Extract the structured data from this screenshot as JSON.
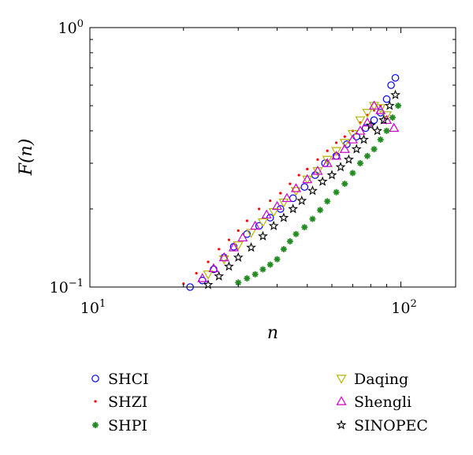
{
  "chart_data": {
    "type": "scatter",
    "title": "",
    "xlabel": "n",
    "ylabel": "F(n)",
    "xscale": "log",
    "yscale": "log",
    "xlim": [
      10,
      150
    ],
    "ylim": [
      0.1,
      1
    ],
    "xticks": [
      {
        "value": 10,
        "base": "10",
        "exp": "1"
      },
      {
        "value": 100,
        "base": "10",
        "exp": "2"
      }
    ],
    "yticks": [
      {
        "value": 0.1,
        "base": "10",
        "exp": "−1"
      },
      {
        "value": 1,
        "base": "10",
        "exp": "0"
      }
    ],
    "grid": false,
    "legend_placement": "below plot, two columns",
    "series": [
      {
        "name": "SHCI",
        "marker": "circle",
        "color": "#0000ff",
        "x": [
          21,
          23,
          25,
          27,
          29,
          32,
          35,
          38,
          41,
          45,
          49,
          53,
          57,
          62,
          67,
          72,
          77,
          82,
          86,
          90,
          93,
          96
        ],
        "y": [
          0.1,
          0.106,
          0.117,
          0.13,
          0.143,
          0.16,
          0.172,
          0.185,
          0.2,
          0.22,
          0.243,
          0.27,
          0.3,
          0.32,
          0.355,
          0.38,
          0.41,
          0.44,
          0.47,
          0.53,
          0.6,
          0.64
        ]
      },
      {
        "name": "SHZI",
        "marker": "dot",
        "color": "#ff0000",
        "x": [
          20,
          22,
          24,
          26,
          28,
          30,
          32,
          35,
          38,
          41,
          44,
          47,
          50,
          54,
          58,
          62,
          66,
          70,
          74,
          78,
          82,
          86
        ],
        "y": [
          0.103,
          0.113,
          0.125,
          0.14,
          0.152,
          0.165,
          0.18,
          0.2,
          0.215,
          0.23,
          0.25,
          0.27,
          0.285,
          0.31,
          0.335,
          0.36,
          0.38,
          0.4,
          0.43,
          0.46,
          0.48,
          0.5
        ]
      },
      {
        "name": "SHPI",
        "marker": "asterisk",
        "color": "#228b22",
        "x": [
          30,
          32,
          34,
          36,
          38,
          40,
          42,
          44,
          46,
          49,
          52,
          55,
          58,
          62,
          66,
          70,
          74,
          78,
          82,
          86,
          90,
          94,
          98
        ],
        "y": [
          0.104,
          0.108,
          0.112,
          0.117,
          0.122,
          0.128,
          0.14,
          0.15,
          0.16,
          0.17,
          0.183,
          0.198,
          0.214,
          0.232,
          0.25,
          0.275,
          0.3,
          0.32,
          0.34,
          0.37,
          0.4,
          0.45,
          0.5
        ]
      },
      {
        "name": "Daqing",
        "marker": "triangle-down",
        "color": "#b5b500",
        "x": [
          24,
          27,
          30,
          33,
          36,
          39,
          42,
          46,
          50,
          54,
          58,
          62,
          66,
          70,
          74,
          78,
          82,
          86,
          90
        ],
        "y": [
          0.112,
          0.128,
          0.145,
          0.162,
          0.178,
          0.195,
          0.212,
          0.235,
          0.26,
          0.28,
          0.31,
          0.335,
          0.36,
          0.39,
          0.44,
          0.47,
          0.5,
          0.49,
          0.46
        ]
      },
      {
        "name": "Shengli",
        "marker": "triangle-up",
        "color": "#cc00cc",
        "x": [
          23,
          25,
          27,
          29,
          31,
          34,
          37,
          40,
          43,
          46,
          50,
          54,
          58,
          62,
          66,
          70,
          74,
          78,
          82,
          86,
          90,
          95
        ],
        "y": [
          0.108,
          0.118,
          0.13,
          0.142,
          0.155,
          0.172,
          0.19,
          0.205,
          0.22,
          0.24,
          0.26,
          0.28,
          0.3,
          0.32,
          0.34,
          0.37,
          0.4,
          0.43,
          0.5,
          0.48,
          0.44,
          0.41
        ]
      },
      {
        "name": "SINOPEC",
        "marker": "star",
        "color": "#000000",
        "x": [
          24,
          26,
          28,
          30,
          33,
          36,
          39,
          42,
          45,
          48,
          52,
          56,
          60,
          64,
          68,
          72,
          76,
          80,
          84,
          88,
          92,
          96
        ],
        "y": [
          0.102,
          0.11,
          0.12,
          0.13,
          0.142,
          0.157,
          0.172,
          0.185,
          0.2,
          0.215,
          0.235,
          0.255,
          0.27,
          0.29,
          0.31,
          0.34,
          0.37,
          0.42,
          0.4,
          0.44,
          0.5,
          0.55
        ]
      }
    ]
  }
}
